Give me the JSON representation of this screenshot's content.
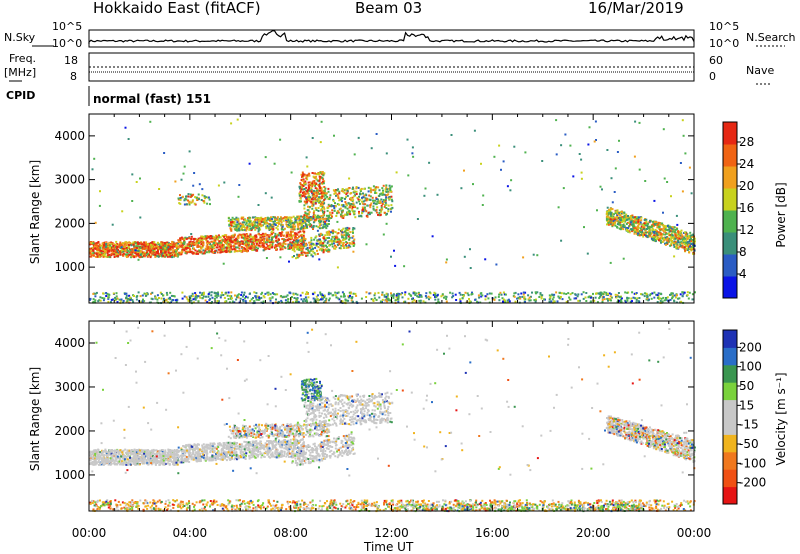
{
  "header": {
    "station": "Hokkaido East (fitACF)",
    "beam": "Beam 03",
    "date": "16/Mar/2019"
  },
  "side_labels": {
    "nsky": "N.Sky",
    "nsearch": "N.Search",
    "freq": "Freq.",
    "freq_unit": "[MHz]",
    "nave": "Nave",
    "cpid": "CPID",
    "nsky_ticks": [
      "10^5",
      "10^0"
    ],
    "nsearch_ticks": [
      "10^5",
      "10^0"
    ],
    "freq_ticks": [
      "18",
      "8"
    ],
    "nave_ticks": [
      "60",
      "0"
    ]
  },
  "cpid_text": "normal (fast) 151",
  "colors": {
    "power_scale": [
      "#0a14e6",
      "#2a5cc4",
      "#3a8f7a",
      "#4fb24f",
      "#c8d21e",
      "#f0a01e",
      "#f06414",
      "#e62814"
    ],
    "velocity_scale": [
      "#e61414",
      "#f05014",
      "#f0781e",
      "#f0b41e",
      "#c8c8c8",
      "#c8c8c8",
      "#7ad23c",
      "#3a9650",
      "#2a6ec8",
      "#1e32b4"
    ]
  },
  "chart_data": [
    {
      "type": "heatmap",
      "panel": "power",
      "ylabel": "Slant Range [km]",
      "ylim": [
        180,
        4500
      ],
      "yticks": [
        "1000",
        "2000",
        "3000",
        "4000"
      ],
      "xlim": [
        "00:00",
        "24:00"
      ],
      "colorbar_label": "Power [dB]",
      "colorbar_ticks": [
        "4",
        "8",
        "12",
        "16",
        "20",
        "24",
        "28"
      ],
      "colorbar_range": [
        0,
        30
      ]
    },
    {
      "type": "heatmap",
      "panel": "velocity",
      "ylabel": "Slant Range [km]",
      "ylim": [
        180,
        4500
      ],
      "yticks": [
        "1000",
        "2000",
        "3000",
        "4000"
      ],
      "xlim": [
        "00:00",
        "24:00"
      ],
      "xlabel": "Time UT",
      "xticks": [
        "00:00",
        "04:00",
        "08:00",
        "12:00",
        "16:00",
        "20:00",
        "00:00"
      ],
      "colorbar_label": "Velocity [m s⁻¹]",
      "colorbar_ticks": [
        "200",
        "100",
        "50",
        "15",
        "-15",
        "-50",
        "-100",
        "-200"
      ]
    }
  ]
}
